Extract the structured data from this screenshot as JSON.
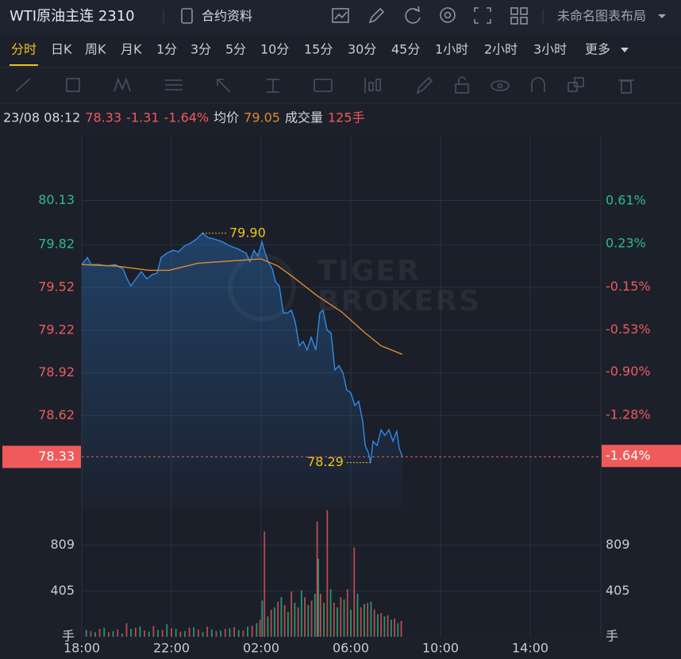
{
  "header": {
    "title": "WTI原油主连 2310",
    "contract_info": "合约资料",
    "layout_name": "未命名图表布局"
  },
  "timeframes": {
    "items": [
      "分时",
      "日K",
      "周K",
      "月K",
      "1分",
      "3分",
      "5分",
      "10分",
      "15分",
      "30分",
      "45分",
      "1小时",
      "2小时",
      "3小时"
    ],
    "active_index": 0,
    "more": "更多"
  },
  "info": {
    "time": "23/08 08:12",
    "price": 78.33,
    "change": -1.31,
    "change_pct": "-1.64%",
    "avg_label": "均价",
    "avg": 79.05,
    "volume_label": "成交量",
    "volume": "125手"
  },
  "chart_data": {
    "type": "line",
    "watermark": [
      "TIGER",
      "BROKERS"
    ],
    "up_color": "#2dbd85",
    "down_color": "#f05a5a",
    "xlim": [
      0,
      23.15
    ],
    "xticks": [
      {
        "value": 0,
        "label": "18:00"
      },
      {
        "value": 4,
        "label": "22:00"
      },
      {
        "value": 8,
        "label": "02:00"
      },
      {
        "value": 12,
        "label": "06:00"
      },
      {
        "value": 16,
        "label": "10:00"
      },
      {
        "value": 20,
        "label": "14:00"
      }
    ],
    "ylim": [
      77.97,
      80.59
    ],
    "yticks": [
      80.13,
      79.82,
      79.52,
      79.22,
      78.92,
      78.62
    ],
    "y2lim": [
      -2.1,
      1.19
    ],
    "y2ticks": [
      {
        "value": 0.61,
        "label": "0.61%"
      },
      {
        "value": 0.23,
        "label": "0.23%"
      },
      {
        "value": -0.15,
        "label": "-0.15%"
      },
      {
        "value": -0.53,
        "label": "-0.53%"
      },
      {
        "value": -0.9,
        "label": "-0.90%"
      },
      {
        "value": -1.28,
        "label": "-1.28%"
      }
    ],
    "grid": true,
    "series": [
      {
        "color": "#2f8be8",
        "x": [
          0,
          0.25,
          0.42,
          0.78,
          1.13,
          1.49,
          1.84,
          2.02,
          2.19,
          2.37,
          2.65,
          2.9,
          3.15,
          3.36,
          3.54,
          3.79,
          4.07,
          4.32,
          4.57,
          4.85,
          5.13,
          5.38,
          5.63,
          5.91,
          6.27,
          6.62,
          6.97,
          7.33,
          7.5,
          7.68,
          7.86,
          8.04,
          8.14,
          8.32,
          8.5,
          8.64,
          8.81,
          8.99,
          9.17,
          9.35,
          9.52,
          9.7,
          9.88,
          10.05,
          10.23,
          10.44,
          10.62,
          10.76,
          10.94,
          11.12,
          11.29,
          11.47,
          11.65,
          11.82,
          12.0,
          12.18,
          12.35,
          12.53,
          12.64,
          12.78,
          12.88,
          12.99,
          13.17,
          13.35,
          13.52,
          13.7,
          13.88,
          14.05,
          14.16,
          14.3
        ],
        "values": [
          79.68,
          79.73,
          79.68,
          79.68,
          79.67,
          79.68,
          79.65,
          79.58,
          79.53,
          79.57,
          79.63,
          79.58,
          79.61,
          79.62,
          79.73,
          79.76,
          79.78,
          79.77,
          79.81,
          79.83,
          79.86,
          79.9,
          79.87,
          79.86,
          79.84,
          79.81,
          79.79,
          79.76,
          79.7,
          79.78,
          79.74,
          79.84,
          79.78,
          79.7,
          79.65,
          79.56,
          79.53,
          79.34,
          79.34,
          79.36,
          79.28,
          79.11,
          79.14,
          79.08,
          79.17,
          79.08,
          79.34,
          79.36,
          79.22,
          79.2,
          78.94,
          78.97,
          78.92,
          78.8,
          78.78,
          78.69,
          78.72,
          78.58,
          78.41,
          78.36,
          78.29,
          78.44,
          78.41,
          78.52,
          78.48,
          78.52,
          78.44,
          78.51,
          78.39,
          78.33
        ]
      },
      {
        "color": "#e08a2e",
        "x": [
          0,
          1.5,
          3.0,
          3.9,
          5.2,
          8.0,
          8.75,
          9.45,
          10.51,
          11.57,
          12.64,
          13.35,
          14.3
        ],
        "values": [
          79.68,
          79.67,
          79.64,
          79.64,
          79.69,
          79.72,
          79.67,
          79.59,
          79.46,
          79.35,
          79.2,
          79.11,
          79.05
        ]
      }
    ],
    "last_price": 78.33,
    "last_pct": {
      "value": -1.64,
      "label": "-1.64%"
    },
    "annotations": [
      {
        "x": 5.38,
        "value": 79.9,
        "label": "79.90"
      },
      {
        "x": 12.88,
        "value": 78.29,
        "label": "78.29"
      }
    ],
    "volume": {
      "ylim": [
        0,
        1137
      ],
      "yticks": [
        {
          "value": 809,
          "label": "809"
        },
        {
          "value": 405,
          "label": "405"
        },
        {
          "value": 0,
          "label": "手"
        }
      ],
      "up": {
        "color": "#2dbd85",
        "x": [
          0.2,
          0.6,
          1.0,
          1.4,
          1.8,
          2.2,
          2.6,
          3.0,
          3.4,
          3.8,
          4.2,
          4.6,
          5.0,
          5.4,
          5.8,
          6.2,
          6.6,
          7.0,
          7.4,
          7.8,
          8.05,
          8.3,
          8.6,
          8.9,
          9.2,
          9.5,
          9.8,
          10.1,
          10.4,
          10.55,
          10.8,
          11.1,
          11.4,
          11.7,
          12.0,
          12.3,
          12.6,
          12.9,
          13.2,
          13.5,
          13.8,
          14.1
        ],
        "values": [
          60,
          40,
          80,
          50,
          30,
          70,
          90,
          45,
          60,
          110,
          70,
          50,
          85,
          40,
          65,
          55,
          75,
          60,
          90,
          120,
          320,
          180,
          260,
          350,
          220,
          300,
          410,
          280,
          380,
          690,
          300,
          420,
          260,
          330,
          240,
          380,
          290,
          310,
          200,
          180,
          150,
          120
        ]
      },
      "down": {
        "color": "#f05a5a",
        "x": [
          0.4,
          0.8,
          1.2,
          1.6,
          2.0,
          2.4,
          2.8,
          3.2,
          3.6,
          4.0,
          4.4,
          4.8,
          5.2,
          5.6,
          6.0,
          6.4,
          6.8,
          7.2,
          7.6,
          7.95,
          8.15,
          8.45,
          8.75,
          9.05,
          9.35,
          9.65,
          9.95,
          10.25,
          10.5,
          10.65,
          10.95,
          11.25,
          11.55,
          11.85,
          12.15,
          12.45,
          12.75,
          13.05,
          13.35,
          13.65,
          13.95,
          14.25
        ],
        "values": [
          50,
          70,
          40,
          65,
          120,
          80,
          55,
          95,
          60,
          75,
          45,
          80,
          65,
          90,
          50,
          70,
          85,
          55,
          100,
          150,
          930,
          240,
          310,
          280,
          400,
          260,
          350,
          320,
          1020,
          380,
          1120,
          300,
          350,
          420,
          790,
          260,
          300,
          240,
          210,
          190,
          160,
          140
        ]
      }
    }
  }
}
